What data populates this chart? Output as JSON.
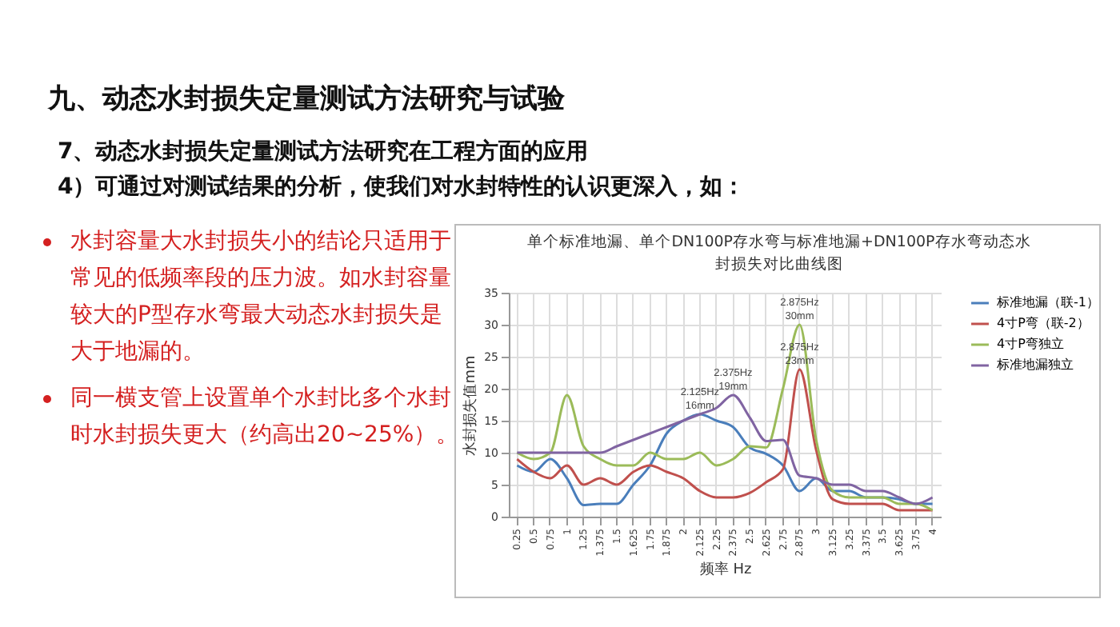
{
  "chart_data": {
    "type": "line",
    "title": "九、动态水封损失定量测试方法研究与试验",
    "subtitle": "单个标准地漏、单个DN100P存水弯与标准地漏+DN100P存水弯动态水封损失对比曲线图",
    "xlabel": "频率 Hz",
    "ylabel": "水封损失值mm",
    "categories": [
      "0.25",
      "0.5",
      "0.75",
      "1",
      "1.25",
      "1.375",
      "1.5",
      "1.625",
      "1.75",
      "1.875",
      "2",
      "2.125",
      "2.25",
      "2.375",
      "2.5",
      "2.625",
      "2.75",
      "2.875",
      "3",
      "3.125",
      "3.25",
      "3.375",
      "3.5",
      "3.625",
      "3.75",
      "4"
    ],
    "series": [
      {
        "name": "标准地漏（联-1）",
        "color": "#4a7ebb",
        "values": [
          8,
          7,
          9,
          6,
          1.8,
          2,
          2,
          5,
          8,
          13,
          15,
          16,
          15,
          14,
          10.8,
          9.8,
          8,
          4,
          6,
          4,
          4,
          3,
          3,
          2.7,
          2,
          2
        ]
      },
      {
        "name": "4寸P弯（联-2）",
        "color": "#c0504d",
        "values": [
          9,
          7,
          6,
          8,
          5,
          6,
          5,
          7,
          8,
          7,
          6,
          4,
          3,
          3,
          3.7,
          5.4,
          7.4,
          23,
          10.4,
          2.7,
          2,
          2,
          2,
          1,
          1,
          1
        ]
      },
      {
        "name": "4寸P弯独立",
        "color": "#9bbb59",
        "values": [
          10,
          9,
          10,
          19,
          11,
          9,
          8,
          8,
          10,
          9,
          9,
          10,
          8,
          9,
          11,
          10.8,
          20,
          30,
          12,
          4,
          3,
          3,
          3,
          2,
          2,
          1
        ]
      },
      {
        "name": "标准地漏独立",
        "color": "#8064a2",
        "values": [
          10,
          10,
          10,
          10,
          10,
          10,
          11,
          12,
          13,
          14,
          15,
          16,
          17,
          19,
          15.5,
          11.8,
          12,
          6.4,
          6,
          5,
          5,
          4,
          4,
          3,
          2,
          3
        ]
      }
    ],
    "ylim": [
      0,
      35
    ],
    "yticks": [
      0,
      5,
      10,
      15,
      20,
      25,
      30,
      35
    ],
    "grid": true,
    "legend": "right",
    "marker": "none",
    "line_style": "solid",
    "annotations": [
      "7、动态水封损失定量测试方法研究在工程方面的应用",
      "4）可通过对测试结果的分析，使我们对水封特性的认识更深入，如：",
      "水封容量大水封损失小的结论只适用于常见的低频率段的压力波。如水封容量较大的P型存水弯最大动态水封损失是大于地漏的。",
      "同一横支管上设置单个水封比多个水封时水封损失更大（约高出20~25%）。",
      {
        "text": "2.125Hz\n16mm",
        "x": "2.125",
        "y": 16
      },
      {
        "text": "2.375Hz\n19mm",
        "x": "2.375",
        "y": 19
      },
      {
        "text": "2.875Hz\n30mm",
        "x": "2.875",
        "y": 30
      },
      {
        "text": "2.875Hz\n23mm",
        "x": "2.875",
        "y": 23
      }
    ]
  }
}
